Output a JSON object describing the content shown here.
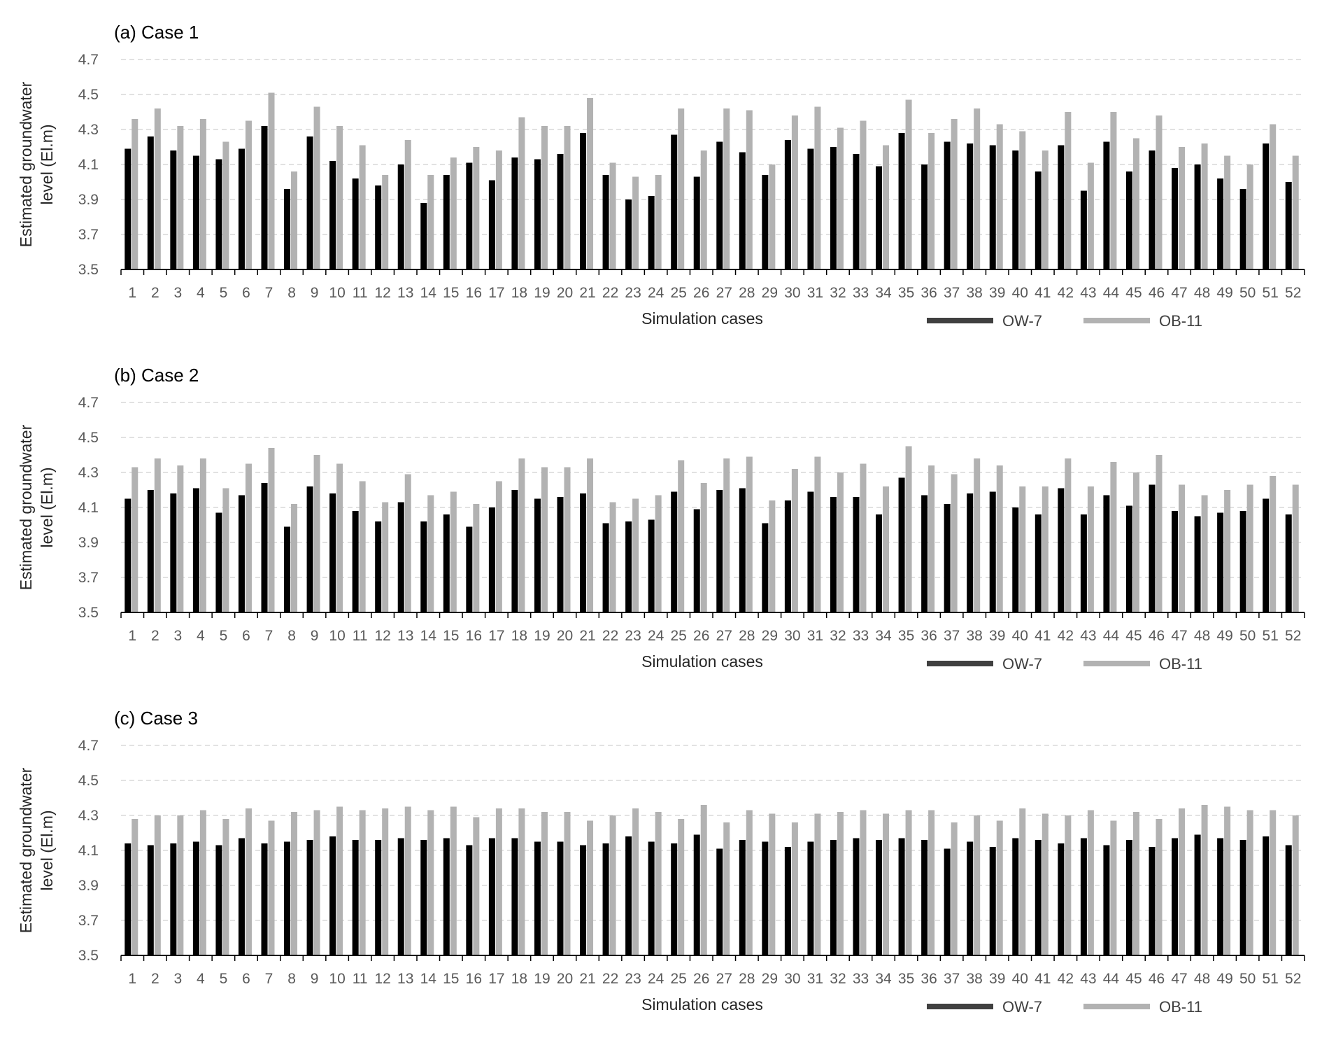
{
  "figure": {
    "x_label": "Simulation cases",
    "y_label_line1": "Estimated groundwater",
    "y_label_line2": "level (El.m)",
    "y_ticks": [
      "3.5",
      "3.7",
      "3.9",
      "4.1",
      "4.3",
      "4.5",
      "4.7"
    ],
    "legend": [
      {
        "label": "OW-7",
        "color": "#000000"
      },
      {
        "label": "OB-11",
        "color": "#b2b2b2"
      }
    ]
  },
  "chart_data": [
    {
      "type": "bar",
      "title": "(a) Case 1",
      "xlabel": "Simulation cases",
      "ylabel": "Estimated groundwater level (El.m)",
      "ylim": [
        3.5,
        4.7
      ],
      "grid": true,
      "legend_position": "bottom-right",
      "categories": [
        "1",
        "2",
        "3",
        "4",
        "5",
        "6",
        "7",
        "8",
        "9",
        "10",
        "11",
        "12",
        "13",
        "14",
        "15",
        "16",
        "17",
        "18",
        "19",
        "20",
        "21",
        "22",
        "23",
        "24",
        "25",
        "26",
        "27",
        "28",
        "29",
        "30",
        "31",
        "32",
        "33",
        "34",
        "35",
        "36",
        "37",
        "38",
        "39",
        "40",
        "41",
        "42",
        "43",
        "44",
        "45",
        "46",
        "47",
        "48",
        "49",
        "50",
        "51",
        "52"
      ],
      "series": [
        {
          "name": "OW-7",
          "color": "#000000",
          "values": [
            4.19,
            4.26,
            4.18,
            4.15,
            4.13,
            4.19,
            4.32,
            3.96,
            4.26,
            4.12,
            4.02,
            3.98,
            4.1,
            3.88,
            4.04,
            4.11,
            4.01,
            4.14,
            4.13,
            4.16,
            4.28,
            4.04,
            3.9,
            3.92,
            4.27,
            4.03,
            4.23,
            4.17,
            4.04,
            4.24,
            4.19,
            4.2,
            4.16,
            4.09,
            4.28,
            4.1,
            4.23,
            4.22,
            4.21,
            4.18,
            4.06,
            4.21,
            3.95,
            4.23,
            4.06,
            4.18,
            4.08,
            4.1,
            4.02,
            3.96,
            4.22,
            4.0
          ]
        },
        {
          "name": "OB-11",
          "color": "#b2b2b2",
          "values": [
            4.36,
            4.42,
            4.32,
            4.36,
            4.23,
            4.35,
            4.51,
            4.06,
            4.43,
            4.32,
            4.21,
            4.04,
            4.24,
            4.04,
            4.14,
            4.2,
            4.18,
            4.37,
            4.32,
            4.32,
            4.48,
            4.11,
            4.03,
            4.04,
            4.42,
            4.18,
            4.42,
            4.41,
            4.1,
            4.38,
            4.43,
            4.31,
            4.35,
            4.21,
            4.47,
            4.28,
            4.36,
            4.42,
            4.33,
            4.29,
            4.18,
            4.4,
            4.11,
            4.4,
            4.25,
            4.38,
            4.2,
            4.22,
            4.15,
            4.1,
            4.33,
            4.15
          ]
        }
      ]
    },
    {
      "type": "bar",
      "title": "(b) Case 2",
      "xlabel": "Simulation cases",
      "ylabel": "Estimated groundwater level (El.m)",
      "ylim": [
        3.5,
        4.7
      ],
      "grid": true,
      "legend_position": "bottom-right",
      "categories": [
        "1",
        "2",
        "3",
        "4",
        "5",
        "6",
        "7",
        "8",
        "9",
        "10",
        "11",
        "12",
        "13",
        "14",
        "15",
        "16",
        "17",
        "18",
        "19",
        "20",
        "21",
        "22",
        "23",
        "24",
        "25",
        "26",
        "27",
        "28",
        "29",
        "30",
        "31",
        "32",
        "33",
        "34",
        "35",
        "36",
        "37",
        "38",
        "39",
        "40",
        "41",
        "42",
        "43",
        "44",
        "45",
        "46",
        "47",
        "48",
        "49",
        "50",
        "51",
        "52"
      ],
      "series": [
        {
          "name": "OW-7",
          "color": "#000000",
          "values": [
            4.15,
            4.2,
            4.18,
            4.21,
            4.07,
            4.17,
            4.24,
            3.99,
            4.22,
            4.18,
            4.08,
            4.02,
            4.13,
            4.02,
            4.06,
            3.99,
            4.1,
            4.2,
            4.15,
            4.16,
            4.18,
            4.01,
            4.02,
            4.03,
            4.19,
            4.09,
            4.2,
            4.21,
            4.01,
            4.14,
            4.19,
            4.16,
            4.16,
            4.06,
            4.27,
            4.17,
            4.12,
            4.18,
            4.19,
            4.1,
            4.06,
            4.21,
            4.06,
            4.17,
            4.11,
            4.23,
            4.08,
            4.05,
            4.07,
            4.08,
            4.15,
            4.06
          ]
        },
        {
          "name": "OB-11",
          "color": "#b2b2b2",
          "values": [
            4.33,
            4.38,
            4.34,
            4.38,
            4.21,
            4.35,
            4.44,
            4.12,
            4.4,
            4.35,
            4.25,
            4.13,
            4.29,
            4.17,
            4.19,
            4.12,
            4.25,
            4.38,
            4.33,
            4.33,
            4.38,
            4.13,
            4.15,
            4.17,
            4.37,
            4.24,
            4.38,
            4.39,
            4.14,
            4.32,
            4.39,
            4.3,
            4.35,
            4.22,
            4.45,
            4.34,
            4.29,
            4.38,
            4.34,
            4.22,
            4.22,
            4.38,
            4.22,
            4.36,
            4.3,
            4.4,
            4.23,
            4.17,
            4.2,
            4.23,
            4.28,
            4.23
          ]
        }
      ]
    },
    {
      "type": "bar",
      "title": "(c) Case 3",
      "xlabel": "Simulation cases",
      "ylabel": "Estimated groundwater level (El.m)",
      "ylim": [
        3.5,
        4.7
      ],
      "grid": true,
      "legend_position": "bottom-right",
      "categories": [
        "1",
        "2",
        "3",
        "4",
        "5",
        "6",
        "7",
        "8",
        "9",
        "10",
        "11",
        "12",
        "13",
        "14",
        "15",
        "16",
        "17",
        "18",
        "19",
        "20",
        "21",
        "22",
        "23",
        "24",
        "25",
        "26",
        "27",
        "28",
        "29",
        "30",
        "31",
        "32",
        "33",
        "34",
        "35",
        "36",
        "37",
        "38",
        "39",
        "40",
        "41",
        "42",
        "43",
        "44",
        "45",
        "46",
        "47",
        "48",
        "49",
        "50",
        "51",
        "52"
      ],
      "series": [
        {
          "name": "OW-7",
          "color": "#000000",
          "values": [
            4.14,
            4.13,
            4.14,
            4.15,
            4.13,
            4.17,
            4.14,
            4.15,
            4.16,
            4.18,
            4.16,
            4.16,
            4.17,
            4.16,
            4.17,
            4.13,
            4.17,
            4.17,
            4.15,
            4.15,
            4.13,
            4.14,
            4.18,
            4.15,
            4.14,
            4.19,
            4.11,
            4.16,
            4.15,
            4.12,
            4.15,
            4.16,
            4.17,
            4.16,
            4.17,
            4.16,
            4.11,
            4.15,
            4.12,
            4.17,
            4.16,
            4.14,
            4.17,
            4.13,
            4.16,
            4.12,
            4.17,
            4.19,
            4.17,
            4.16,
            4.18,
            4.13
          ]
        },
        {
          "name": "OB-11",
          "color": "#b2b2b2",
          "values": [
            4.28,
            4.3,
            4.3,
            4.33,
            4.28,
            4.34,
            4.27,
            4.32,
            4.33,
            4.35,
            4.33,
            4.34,
            4.35,
            4.33,
            4.35,
            4.29,
            4.34,
            4.34,
            4.32,
            4.32,
            4.27,
            4.3,
            4.34,
            4.32,
            4.28,
            4.36,
            4.26,
            4.33,
            4.31,
            4.26,
            4.31,
            4.32,
            4.33,
            4.31,
            4.33,
            4.33,
            4.26,
            4.3,
            4.27,
            4.34,
            4.31,
            4.3,
            4.33,
            4.27,
            4.32,
            4.28,
            4.34,
            4.36,
            4.35,
            4.33,
            4.33,
            4.3
          ]
        }
      ]
    }
  ]
}
